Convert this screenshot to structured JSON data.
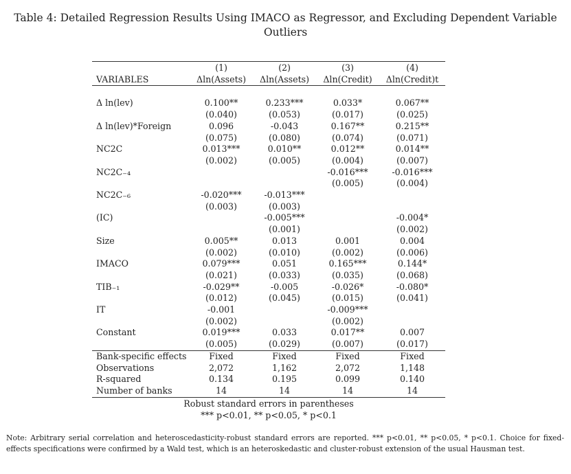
{
  "caption": {
    "line1": "Table 4: Detailed Regression Results Using IMACO as Regressor, and Excluding Dependent Variable",
    "line2": "Outliers"
  },
  "table": {
    "model_numbers": [
      "(1)",
      "(2)",
      "(3)",
      "(4)"
    ],
    "variables_header": "VARIABLES",
    "dependent_vars": [
      "Δln(Assets)",
      "Δln(Assets)",
      "Δln(Credit)",
      "Δln(Credit)t"
    ],
    "rows": [
      {
        "name": "Δ ln(lev)",
        "coef": [
          "0.100**",
          "0.233***",
          "0.033*",
          "0.067**"
        ],
        "se": [
          "(0.040)",
          "(0.053)",
          "(0.017)",
          "(0.025)"
        ]
      },
      {
        "name": "Δ ln(lev)*Foreign",
        "coef": [
          "0.096",
          "-0.043",
          "0.167**",
          "0.215**"
        ],
        "se": [
          "(0.075)",
          "(0.080)",
          "(0.074)",
          "(0.071)"
        ]
      },
      {
        "name": "NC2C",
        "coef": [
          "0.013***",
          "0.010**",
          "0.012**",
          "0.014**"
        ],
        "se": [
          "(0.002)",
          "(0.005)",
          "(0.004)",
          "(0.007)"
        ]
      },
      {
        "name": "NC2C₋₄",
        "coef": [
          "",
          "",
          "-0.016***",
          "-0.016***"
        ],
        "se": [
          "",
          "",
          "(0.005)",
          "(0.004)"
        ]
      },
      {
        "name": "NC2C₋₆",
        "coef": [
          "-0.020***",
          "-0.013***",
          "",
          ""
        ],
        "se": [
          "(0.003)",
          "(0.003)",
          "",
          ""
        ]
      },
      {
        "name": "(IC)",
        "coef": [
          "",
          "-0.005***",
          "",
          "-0.004*"
        ],
        "se": [
          "",
          "(0.001)",
          "",
          "(0.002)"
        ]
      },
      {
        "name": "Size",
        "coef": [
          "0.005**",
          "0.013",
          "0.001",
          "0.004"
        ],
        "se": [
          "(0.002)",
          "(0.010)",
          "(0.002)",
          "(0.006)"
        ]
      },
      {
        "name": "IMACO",
        "coef": [
          "0.079***",
          "0.051",
          "0.165***",
          "0.144*"
        ],
        "se": [
          "(0.021)",
          "(0.033)",
          "(0.035)",
          "(0.068)"
        ]
      },
      {
        "name": "TIB₋₁",
        "coef": [
          "-0.029**",
          "-0.005",
          "-0.026*",
          "-0.080*"
        ],
        "se": [
          "(0.012)",
          "(0.045)",
          "(0.015)",
          "(0.041)"
        ]
      },
      {
        "name": "IT",
        "coef": [
          "-0.001",
          "",
          "-0.009***",
          ""
        ],
        "se": [
          "(0.002)",
          "",
          "(0.002)",
          ""
        ]
      },
      {
        "name": "Constant",
        "coef": [
          "0.019***",
          "0.033",
          "0.017**",
          "0.007"
        ],
        "se": [
          "(0.005)",
          "(0.029)",
          "(0.007)",
          "(0.017)"
        ]
      }
    ],
    "stats": [
      {
        "name": "Bank-specific effects",
        "values": [
          "Fixed",
          "Fixed",
          "Fixed",
          "Fixed"
        ]
      },
      {
        "name": "Observations",
        "values": [
          "2,072",
          "1,162",
          "2,072",
          "1,148"
        ]
      },
      {
        "name": "R-squared",
        "values": [
          "0.134",
          "0.195",
          "0.099",
          "0.140"
        ]
      },
      {
        "name": "Number of banks",
        "values": [
          "14",
          "14",
          "14",
          "14"
        ]
      }
    ]
  },
  "notes_below": {
    "line1": "Robust standard errors in parentheses",
    "line2": "*** p<0.01, ** p<0.05, * p<0.1"
  },
  "footnote": "Note: Arbitrary serial correlation and heteroscedasticity-robust standard errors are reported. *** p<0.01, ** p<0.05, * p<0.1. Choice for fixed-effects specifications were confirmed by a Wald test, which is an heteroskedastic and cluster-robust extension of the usual Hausman test."
}
